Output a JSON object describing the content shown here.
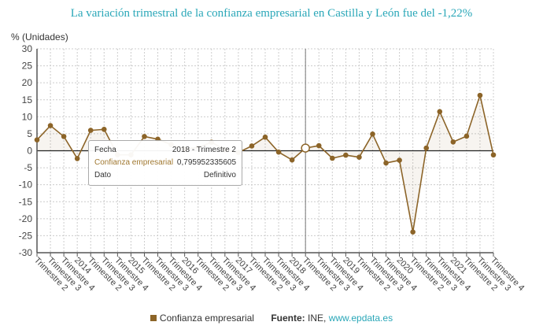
{
  "chart_data": {
    "type": "line",
    "title": "La variación trimestral de la confianza empresarial en Castilla y León fue del -1,22%",
    "ylabel": "% (Unidades)",
    "ylim": [
      -30,
      30
    ],
    "yticks": [
      30,
      25,
      20,
      15,
      10,
      5,
      0,
      -5,
      -10,
      -15,
      -20,
      -25,
      -30
    ],
    "grid": true,
    "categories": [
      "Trimestre 2",
      "Trimestre 3",
      "Trimestre 4",
      "2014",
      "Trimestre 2",
      "Trimestre 3",
      "Trimestre 4",
      "2015",
      "Trimestre 2",
      "Trimestre 3",
      "Trimestre 4",
      "2016",
      "Trimestre 2",
      "Trimestre 3",
      "Trimestre 4",
      "2017",
      "Trimestre 2",
      "Trimestre 3",
      "Trimestre 4",
      "2018",
      "Trimestre 2",
      "Trimestre 3",
      "Trimestre 4",
      "2019",
      "Trimestre 2",
      "Trimestre 3",
      "Trimestre 4",
      "2020",
      "Trimestre 2",
      "Trimestre 3",
      "Trimestre 4",
      "2021",
      "Trimestre 2",
      "Trimestre 3",
      "Trimestre 4"
    ],
    "series": [
      {
        "name": "Confianza empresarial",
        "color": "#8c6428",
        "values": [
          3.2,
          7.4,
          4.2,
          -2.3,
          6.0,
          6.3,
          -1.2,
          -1.2,
          4.2,
          3.4,
          1.8,
          0.5,
          1.0,
          2.5,
          0.3,
          -0.5,
          1.4,
          4.0,
          -0.4,
          -2.7,
          0.795952335605,
          1.5,
          -2.2,
          -1.3,
          -1.9,
          4.9,
          -3.6,
          -2.8,
          -23.9,
          0.8,
          11.5,
          2.6,
          4.3,
          16.3,
          -1.22
        ]
      }
    ],
    "highlight_index": 20,
    "legend_placement": "bottom"
  },
  "tooltip": {
    "fecha_label": "Fecha",
    "fecha_value": "2018 - Trimestre 2",
    "series_label": "Confianza empresarial",
    "series_value": "0,795952335605",
    "dato_label": "Dato",
    "dato_value": "Definitivo"
  },
  "legend": {
    "label": "Confianza empresarial",
    "source_label": "Fuente:",
    "source_value": "INE,",
    "source_link": "www.epdata.es"
  }
}
